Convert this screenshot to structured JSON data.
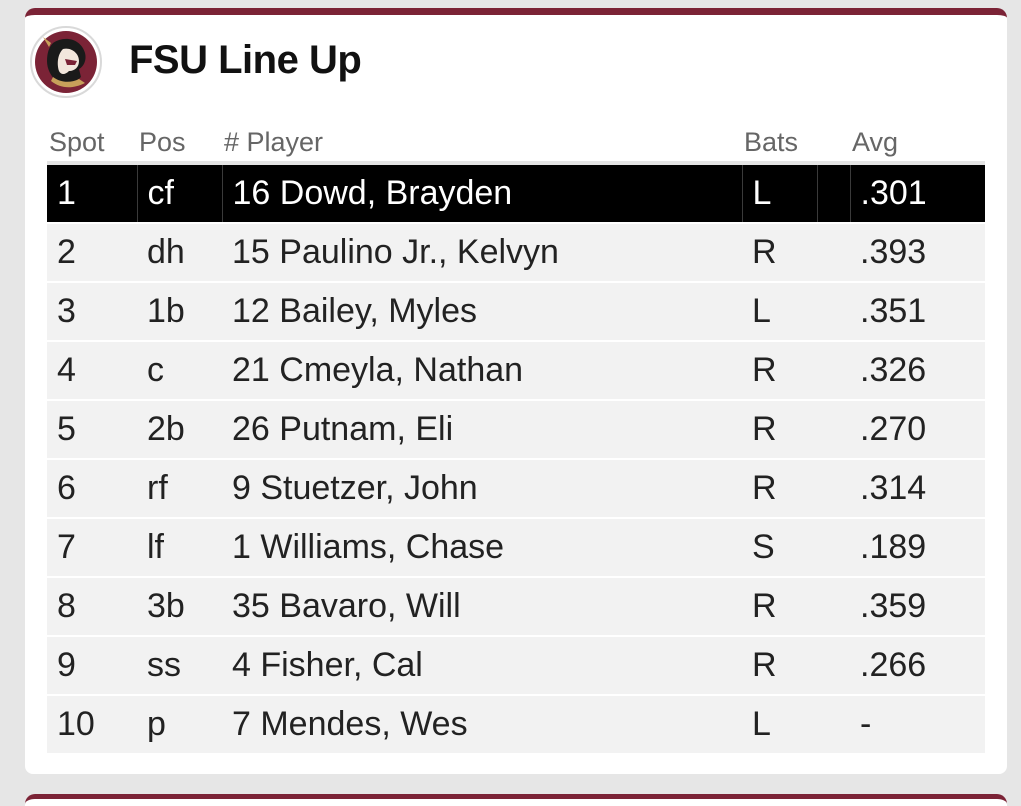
{
  "header": {
    "title": "FSU Line Up",
    "logo_icon": "seminole-head-logo-icon"
  },
  "colors": {
    "accent": "#7b2336",
    "selected_row_bg": "#000000",
    "row_bg": "#f2f2f2"
  },
  "table": {
    "columns": {
      "spot": "Spot",
      "pos": "Pos",
      "player": "# Player",
      "bats": "Bats",
      "avg": "Avg"
    },
    "rows": [
      {
        "spot": "1",
        "pos": "cf",
        "player": "16 Dowd, Brayden",
        "bats": "L",
        "avg": ".301"
      },
      {
        "spot": "2",
        "pos": "dh",
        "player": "15 Paulino Jr., Kelvyn",
        "bats": "R",
        "avg": ".393"
      },
      {
        "spot": "3",
        "pos": "1b",
        "player": "12 Bailey, Myles",
        "bats": "L",
        "avg": ".351"
      },
      {
        "spot": "4",
        "pos": "c",
        "player": "21 Cmeyla, Nathan",
        "bats": "R",
        "avg": ".326"
      },
      {
        "spot": "5",
        "pos": "2b",
        "player": "26 Putnam, Eli",
        "bats": "R",
        "avg": ".270"
      },
      {
        "spot": "6",
        "pos": "rf",
        "player": "9 Stuetzer, John",
        "bats": "R",
        "avg": ".314"
      },
      {
        "spot": "7",
        "pos": "lf",
        "player": "1 Williams, Chase",
        "bats": "S",
        "avg": ".189"
      },
      {
        "spot": "8",
        "pos": "3b",
        "player": "35 Bavaro, Will",
        "bats": "R",
        "avg": ".359"
      },
      {
        "spot": "9",
        "pos": "ss",
        "player": "4 Fisher, Cal",
        "bats": "R",
        "avg": ".266"
      },
      {
        "spot": "10",
        "pos": "p",
        "player": "7 Mendes, Wes",
        "bats": "L",
        "avg": "-"
      }
    ]
  }
}
